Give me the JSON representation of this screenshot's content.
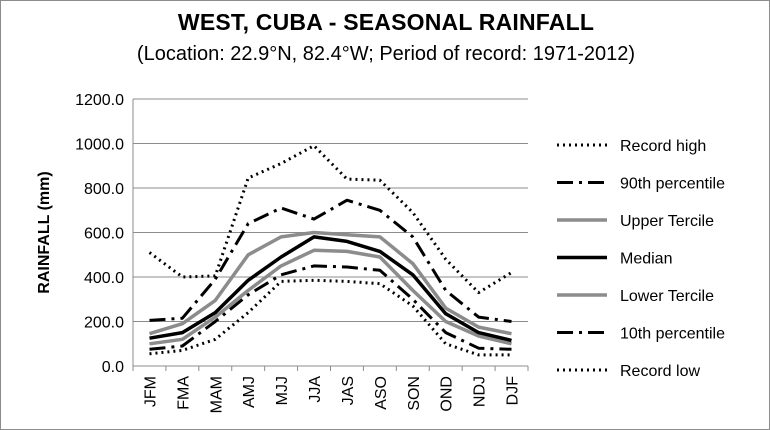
{
  "chart_data": {
    "type": "line",
    "title": "WEST, CUBA - SEASONAL RAINFALL",
    "subtitle": "(Location: 22.9°N, 82.4°W; Period of record: 1971-2012)",
    "ylabel": "RAINFALL (mm)",
    "xlabel": "",
    "ylim": [
      0,
      1200
    ],
    "y_ticks": [
      "0.0",
      "200.0",
      "400.0",
      "600.0",
      "800.0",
      "1000.0",
      "1200.0"
    ],
    "grid": true,
    "legend_position": "right",
    "categories": [
      "JFM",
      "FMA",
      "MAM",
      "AMJ",
      "MJJ",
      "JJA",
      "JAS",
      "ASO",
      "SON",
      "OND",
      "NDJ",
      "DJF"
    ],
    "series": [
      {
        "name": "Record high",
        "color": "#000000",
        "style": "dotted",
        "values": [
          510,
          400,
          405,
          845,
          910,
          990,
          840,
          835,
          690,
          480,
          330,
          420
        ]
      },
      {
        "name": "90th percentile",
        "color": "#000000",
        "style": "dashdot",
        "values": [
          205,
          215,
          390,
          640,
          710,
          660,
          745,
          700,
          580,
          340,
          220,
          200
        ]
      },
      {
        "name": "Upper Tercile",
        "color": "#8c8c8c",
        "style": "solid",
        "values": [
          145,
          190,
          295,
          500,
          580,
          600,
          590,
          580,
          460,
          260,
          175,
          145
        ]
      },
      {
        "name": "Median",
        "color": "#000000",
        "style": "solid",
        "values": [
          125,
          150,
          240,
          385,
          490,
          580,
          560,
          515,
          410,
          235,
          150,
          115
        ]
      },
      {
        "name": "Lower Tercile",
        "color": "#8c8c8c",
        "style": "solid",
        "values": [
          100,
          120,
          220,
          340,
          450,
          520,
          515,
          490,
          340,
          200,
          135,
          100
        ]
      },
      {
        "name": "10th percentile",
        "color": "#000000",
        "style": "dashdot",
        "values": [
          75,
          90,
          200,
          320,
          410,
          450,
          445,
          430,
          300,
          150,
          80,
          75
        ]
      },
      {
        "name": "Record low",
        "color": "#000000",
        "style": "dotted",
        "values": [
          55,
          70,
          120,
          240,
          380,
          385,
          380,
          370,
          270,
          100,
          50,
          50
        ]
      }
    ]
  }
}
